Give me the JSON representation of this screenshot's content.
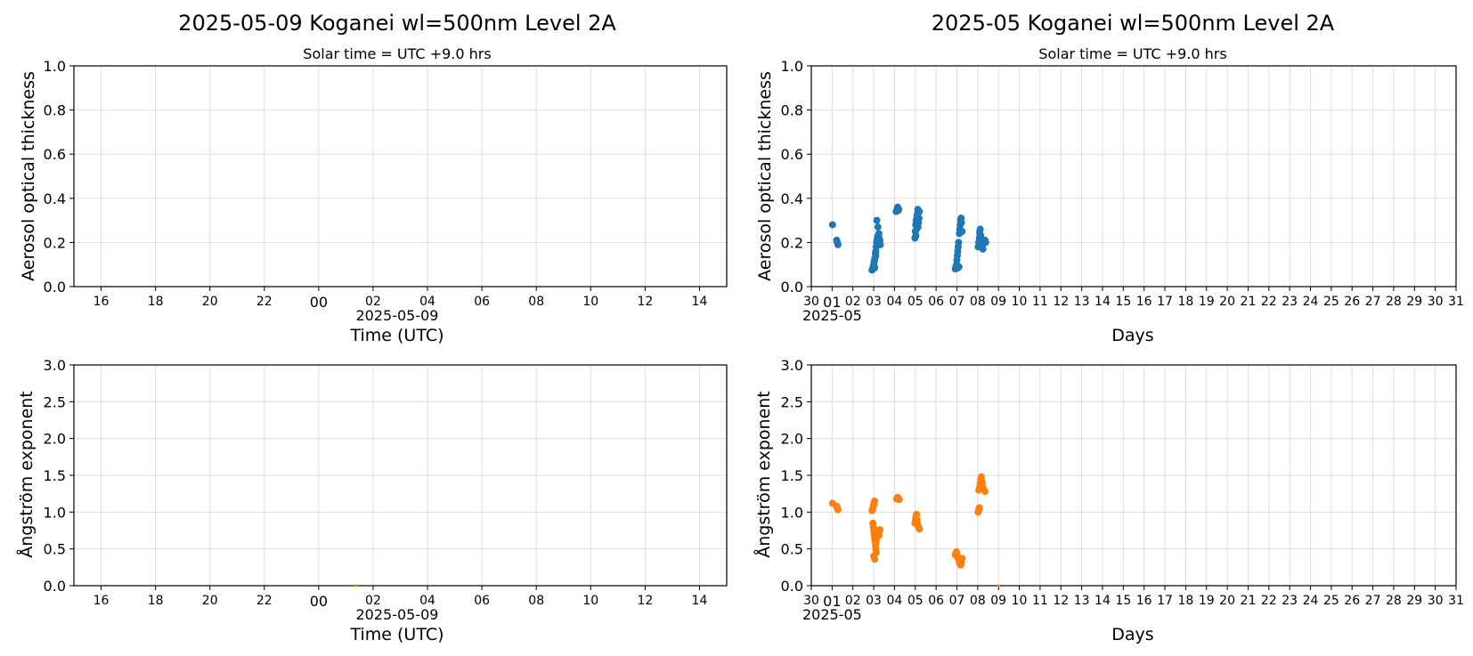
{
  "chart_data": [
    {
      "panel": "daily-aot",
      "type": "scatter",
      "suptitle": "2025-05-09  Koganei  wl=500nm  Level 2A",
      "subtitle": "Solar time = UTC +9.0 hrs",
      "ylabel": "Aerosol optical thickness",
      "xlabel": "Time (UTC)",
      "x_offset_label": "2025-05-09",
      "ylim": [
        0,
        1.0
      ],
      "yticks": [
        "0.0",
        "0.2",
        "0.4",
        "0.6",
        "0.8",
        "1.0"
      ],
      "xlim_hours": [
        -9,
        15
      ],
      "xticks": [
        {
          "h": -8,
          "label": "16"
        },
        {
          "h": -6,
          "label": "18"
        },
        {
          "h": -4,
          "label": "20"
        },
        {
          "h": -2,
          "label": "22"
        },
        {
          "h": 0,
          "label": "00"
        },
        {
          "h": 2,
          "label": "02"
        },
        {
          "h": 4,
          "label": "04"
        },
        {
          "h": 6,
          "label": "06"
        },
        {
          "h": 8,
          "label": "08"
        },
        {
          "h": 10,
          "label": "10"
        },
        {
          "h": 12,
          "label": "12"
        },
        {
          "h": 14,
          "label": "14"
        }
      ],
      "color": "#1f77b4",
      "points": [],
      "grid": true
    },
    {
      "panel": "monthly-aot",
      "type": "scatter",
      "suptitle": "2025-05  Koganei  wl=500nm  Level 2A",
      "subtitle": "Solar time = UTC +9.0 hrs",
      "ylabel": "Aerosol optical thickness",
      "xlabel": "Days",
      "x_offset_label": "2025-05",
      "ylim": [
        0,
        1.0
      ],
      "yticks": [
        "0.0",
        "0.2",
        "0.4",
        "0.6",
        "0.8",
        "1.0"
      ],
      "xlim_days": [
        0,
        31
      ],
      "xticks": [
        "30",
        "01",
        "02",
        "03",
        "04",
        "05",
        "06",
        "07",
        "08",
        "09",
        "10",
        "11",
        "12",
        "13",
        "14",
        "15",
        "16",
        "17",
        "18",
        "19",
        "20",
        "21",
        "22",
        "23",
        "24",
        "25",
        "26",
        "27",
        "28",
        "29",
        "30",
        "31"
      ],
      "color": "#1f77b4",
      "grid": true,
      "points": [
        [
          1.02,
          0.28
        ],
        [
          1.22,
          0.21
        ],
        [
          1.25,
          0.2
        ],
        [
          1.28,
          0.19
        ],
        [
          2.92,
          0.075
        ],
        [
          2.95,
          0.08
        ],
        [
          2.97,
          0.09
        ],
        [
          3.0,
          0.1
        ],
        [
          3.02,
          0.11
        ],
        [
          3.04,
          0.12
        ],
        [
          3.06,
          0.13
        ],
        [
          3.08,
          0.15
        ],
        [
          3.1,
          0.16
        ],
        [
          3.12,
          0.18
        ],
        [
          3.14,
          0.2
        ],
        [
          3.16,
          0.21
        ],
        [
          3.18,
          0.22
        ],
        [
          3.2,
          0.23
        ],
        [
          3.22,
          0.2
        ],
        [
          3.24,
          0.19
        ],
        [
          3.26,
          0.22
        ],
        [
          3.15,
          0.3
        ],
        [
          3.2,
          0.27
        ],
        [
          3.3,
          0.21
        ],
        [
          3.32,
          0.19
        ],
        [
          3.05,
          0.085
        ],
        [
          3.1,
          0.14
        ],
        [
          3.25,
          0.24
        ],
        [
          4.08,
          0.34
        ],
        [
          4.12,
          0.35
        ],
        [
          4.15,
          0.36
        ],
        [
          4.18,
          0.345
        ],
        [
          4.2,
          0.35
        ],
        [
          4.98,
          0.22
        ],
        [
          5.0,
          0.25
        ],
        [
          5.02,
          0.28
        ],
        [
          5.04,
          0.3
        ],
        [
          5.06,
          0.26
        ],
        [
          5.08,
          0.32
        ],
        [
          5.1,
          0.33
        ],
        [
          5.12,
          0.35
        ],
        [
          5.15,
          0.29
        ],
        [
          5.18,
          0.31
        ],
        [
          5.2,
          0.34
        ],
        [
          5.03,
          0.23
        ],
        [
          5.13,
          0.27
        ],
        [
          6.92,
          0.08
        ],
        [
          6.95,
          0.09
        ],
        [
          6.98,
          0.1
        ],
        [
          7.0,
          0.12
        ],
        [
          7.02,
          0.14
        ],
        [
          7.04,
          0.16
        ],
        [
          7.06,
          0.18
        ],
        [
          7.08,
          0.2
        ],
        [
          7.1,
          0.09
        ],
        [
          7.12,
          0.24
        ],
        [
          7.14,
          0.26
        ],
        [
          7.16,
          0.28
        ],
        [
          7.18,
          0.3
        ],
        [
          7.2,
          0.31
        ],
        [
          7.22,
          0.29
        ],
        [
          7.25,
          0.25
        ],
        [
          7.05,
          0.085
        ],
        [
          8.02,
          0.18
        ],
        [
          8.05,
          0.2
        ],
        [
          8.08,
          0.22
        ],
        [
          8.1,
          0.24
        ],
        [
          8.12,
          0.26
        ],
        [
          8.15,
          0.23
        ],
        [
          8.18,
          0.21
        ],
        [
          8.2,
          0.19
        ],
        [
          8.22,
          0.18
        ],
        [
          8.25,
          0.17
        ],
        [
          8.28,
          0.2
        ],
        [
          8.35,
          0.21
        ],
        [
          8.38,
          0.2
        ],
        [
          8.1,
          0.25
        ]
      ]
    },
    {
      "panel": "daily-angstrom",
      "type": "scatter",
      "ylabel": "Ångström exponent",
      "xlabel": "Time (UTC)",
      "x_offset_label": "2025-05-09",
      "ylim": [
        0,
        3.0
      ],
      "yticks": [
        "0.0",
        "0.5",
        "1.0",
        "1.5",
        "2.0",
        "2.5",
        "3.0"
      ],
      "xlim_hours": [
        -9,
        15
      ],
      "xticks": [
        {
          "h": -8,
          "label": "16"
        },
        {
          "h": -6,
          "label": "18"
        },
        {
          "h": -4,
          "label": "20"
        },
        {
          "h": -2,
          "label": "22"
        },
        {
          "h": 0,
          "label": "00"
        },
        {
          "h": 2,
          "label": "02"
        },
        {
          "h": 4,
          "label": "04"
        },
        {
          "h": 6,
          "label": "06"
        },
        {
          "h": 8,
          "label": "08"
        },
        {
          "h": 10,
          "label": "10"
        },
        {
          "h": 12,
          "label": "12"
        },
        {
          "h": 14,
          "label": "14"
        }
      ],
      "color": "#ff7f0e",
      "points": [
        [
          1.35,
          0.0
        ]
      ],
      "grid": true
    },
    {
      "panel": "monthly-angstrom",
      "type": "scatter",
      "ylabel": "Ångström exponent",
      "xlabel": "Days",
      "x_offset_label": "2025-05",
      "ylim": [
        0,
        3.0
      ],
      "yticks": [
        "0.0",
        "0.5",
        "1.0",
        "1.5",
        "2.0",
        "2.5",
        "3.0"
      ],
      "xlim_days": [
        0,
        31
      ],
      "xticks": [
        "30",
        "01",
        "02",
        "03",
        "04",
        "05",
        "06",
        "07",
        "08",
        "09",
        "10",
        "11",
        "12",
        "13",
        "14",
        "15",
        "16",
        "17",
        "18",
        "19",
        "20",
        "21",
        "22",
        "23",
        "24",
        "25",
        "26",
        "27",
        "28",
        "29",
        "30",
        "31"
      ],
      "color": "#ff7f0e",
      "grid": true,
      "points": [
        [
          1.02,
          1.12
        ],
        [
          1.22,
          1.08
        ],
        [
          1.25,
          1.05
        ],
        [
          1.28,
          1.03
        ],
        [
          2.92,
          1.02
        ],
        [
          2.95,
          1.05
        ],
        [
          2.98,
          1.08
        ],
        [
          3.0,
          1.1
        ],
        [
          3.02,
          1.12
        ],
        [
          3.04,
          1.15
        ],
        [
          2.96,
          0.85
        ],
        [
          2.98,
          0.8
        ],
        [
          3.0,
          0.75
        ],
        [
          3.02,
          0.7
        ],
        [
          3.04,
          0.65
        ],
        [
          3.06,
          0.6
        ],
        [
          3.08,
          0.55
        ],
        [
          3.1,
          0.5
        ],
        [
          3.12,
          0.45
        ],
        [
          3.0,
          0.4
        ],
        [
          3.05,
          0.36
        ],
        [
          3.12,
          0.62
        ],
        [
          3.15,
          0.7
        ],
        [
          3.18,
          0.72
        ],
        [
          3.22,
          0.75
        ],
        [
          3.25,
          0.68
        ],
        [
          3.28,
          0.74
        ],
        [
          3.3,
          0.76
        ],
        [
          3.1,
          0.58
        ],
        [
          4.1,
          1.18
        ],
        [
          4.14,
          1.2
        ],
        [
          4.18,
          1.19
        ],
        [
          4.22,
          1.17
        ],
        [
          4.98,
          0.85
        ],
        [
          5.0,
          0.88
        ],
        [
          5.02,
          0.92
        ],
        [
          5.04,
          0.95
        ],
        [
          5.06,
          0.97
        ],
        [
          5.08,
          0.9
        ],
        [
          5.1,
          0.86
        ],
        [
          5.12,
          0.82
        ],
        [
          5.15,
          0.8
        ],
        [
          5.18,
          0.78
        ],
        [
          5.2,
          0.77
        ],
        [
          5.05,
          0.84
        ],
        [
          6.92,
          0.42
        ],
        [
          6.95,
          0.44
        ],
        [
          6.98,
          0.46
        ],
        [
          7.0,
          0.43
        ],
        [
          7.02,
          0.4
        ],
        [
          7.05,
          0.38
        ],
        [
          7.08,
          0.36
        ],
        [
          7.1,
          0.34
        ],
        [
          7.12,
          0.32
        ],
        [
          7.15,
          0.3
        ],
        [
          7.18,
          0.28
        ],
        [
          7.2,
          0.31
        ],
        [
          7.22,
          0.35
        ],
        [
          7.25,
          0.37
        ],
        [
          8.02,
          1.0
        ],
        [
          8.05,
          1.03
        ],
        [
          8.08,
          1.06
        ],
        [
          8.1,
          1.35
        ],
        [
          8.12,
          1.4
        ],
        [
          8.15,
          1.45
        ],
        [
          8.18,
          1.48
        ],
        [
          8.2,
          1.42
        ],
        [
          8.22,
          1.38
        ],
        [
          8.25,
          1.33
        ],
        [
          8.35,
          1.28
        ],
        [
          8.05,
          1.3
        ],
        [
          9.0,
          0.0
        ]
      ]
    }
  ]
}
